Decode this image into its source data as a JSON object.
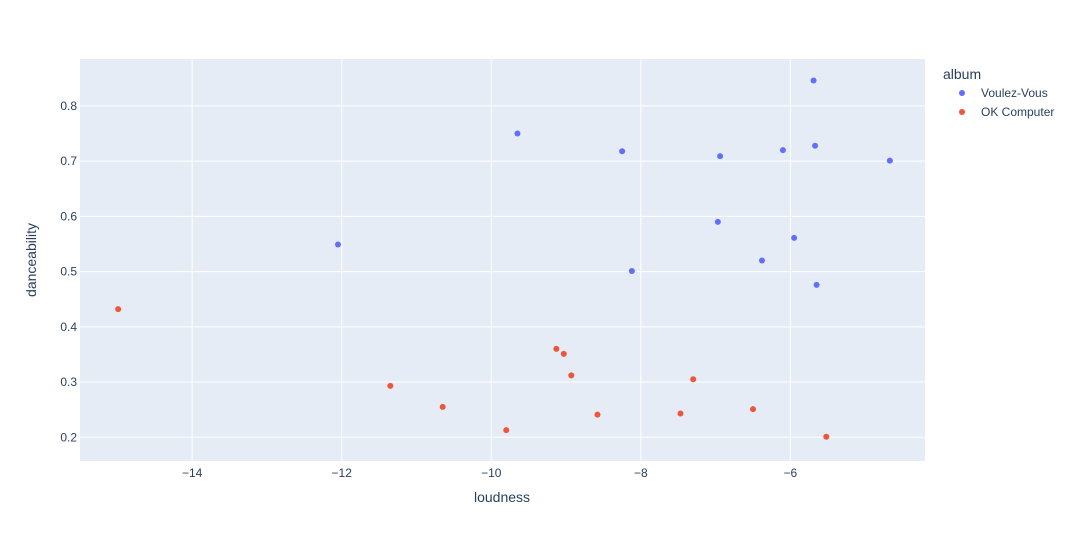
{
  "chart_data": {
    "type": "scatter",
    "xlabel": "loudness",
    "ylabel": "danceability",
    "xlim": [
      -15.5,
      -4.2
    ],
    "ylim": [
      0.157,
      0.885
    ],
    "x_ticks": [
      -14,
      -12,
      -10,
      -8,
      -6
    ],
    "x_tick_labels": [
      "−14",
      "−12",
      "−10",
      "−8",
      "−6"
    ],
    "y_ticks": [
      0.2,
      0.3,
      0.4,
      0.5,
      0.6,
      0.7,
      0.8
    ],
    "y_tick_labels": [
      "0.2",
      "0.3",
      "0.4",
      "0.5",
      "0.6",
      "0.7",
      "0.8"
    ],
    "grid": true,
    "legend_title": "album",
    "legend_position": "right",
    "series": [
      {
        "name": "Voulez-Vous",
        "color": "#636efa",
        "points": [
          {
            "x": -12.05,
            "y": 0.549
          },
          {
            "x": -9.65,
            "y": 0.75
          },
          {
            "x": -8.25,
            "y": 0.718
          },
          {
            "x": -8.12,
            "y": 0.501
          },
          {
            "x": -6.97,
            "y": 0.59
          },
          {
            "x": -6.94,
            "y": 0.709
          },
          {
            "x": -6.38,
            "y": 0.52
          },
          {
            "x": -6.1,
            "y": 0.72
          },
          {
            "x": -5.95,
            "y": 0.561
          },
          {
            "x": -5.69,
            "y": 0.846
          },
          {
            "x": -5.67,
            "y": 0.728
          },
          {
            "x": -5.65,
            "y": 0.476
          },
          {
            "x": -4.67,
            "y": 0.701
          }
        ]
      },
      {
        "name": "OK Computer",
        "color": "#ef553b",
        "points": [
          {
            "x": -14.99,
            "y": 0.432
          },
          {
            "x": -11.35,
            "y": 0.293
          },
          {
            "x": -10.65,
            "y": 0.255
          },
          {
            "x": -9.8,
            "y": 0.213
          },
          {
            "x": -9.13,
            "y": 0.36
          },
          {
            "x": -9.03,
            "y": 0.351
          },
          {
            "x": -8.93,
            "y": 0.312
          },
          {
            "x": -8.58,
            "y": 0.241
          },
          {
            "x": -7.47,
            "y": 0.243
          },
          {
            "x": -7.3,
            "y": 0.305
          },
          {
            "x": -6.5,
            "y": 0.251
          },
          {
            "x": -5.52,
            "y": 0.201
          }
        ]
      }
    ]
  }
}
